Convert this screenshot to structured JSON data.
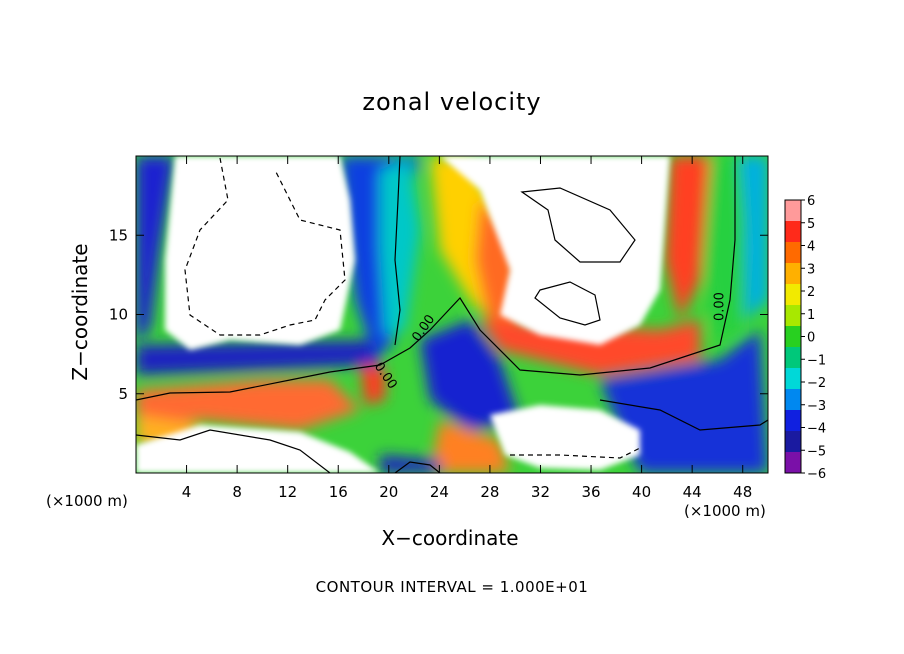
{
  "chart_data": {
    "type": "heatmap",
    "title": "zonal velocity",
    "xlabel": "X−coordinate",
    "ylabel": "Z−coordinate",
    "x_unit_label": "(×1000 m)",
    "x_ticks": [
      4,
      8,
      12,
      16,
      20,
      24,
      28,
      32,
      36,
      40,
      44,
      48
    ],
    "y_ticks": [
      5,
      10,
      15
    ],
    "xlim": [
      0,
      50
    ],
    "ylim": [
      0,
      20
    ],
    "colorbar": {
      "levels": [
        6,
        5,
        4,
        3,
        2,
        1,
        0,
        -1,
        -2,
        -3,
        -4,
        -5,
        -6
      ],
      "tick_labels": [
        "6",
        "5",
        "4",
        "3",
        "2",
        "1",
        "0",
        "−1",
        "−2",
        "−3",
        "−4",
        "−5",
        "−6"
      ],
      "colors": [
        "#ff9a9a",
        "#ff2a1a",
        "#ff6a00",
        "#ffb000",
        "#f2ea00",
        "#a8e800",
        "#28d020",
        "#00c87a",
        "#00d8d8",
        "#0088f0",
        "#1020e0",
        "#1a1aa0",
        "#7a10a8"
      ]
    },
    "contour_labels": [
      {
        "text": "0.00",
        "x": 23,
        "y": 9.0
      },
      {
        "text": "0.00",
        "x": 19.5,
        "y": 6.0
      },
      {
        "text": "0.00",
        "x": 46.5,
        "y": 10.5
      }
    ],
    "annotation": "CONTOUR INTERVAL = 1.000E+01",
    "grid": false,
    "legend_placement": "right"
  }
}
